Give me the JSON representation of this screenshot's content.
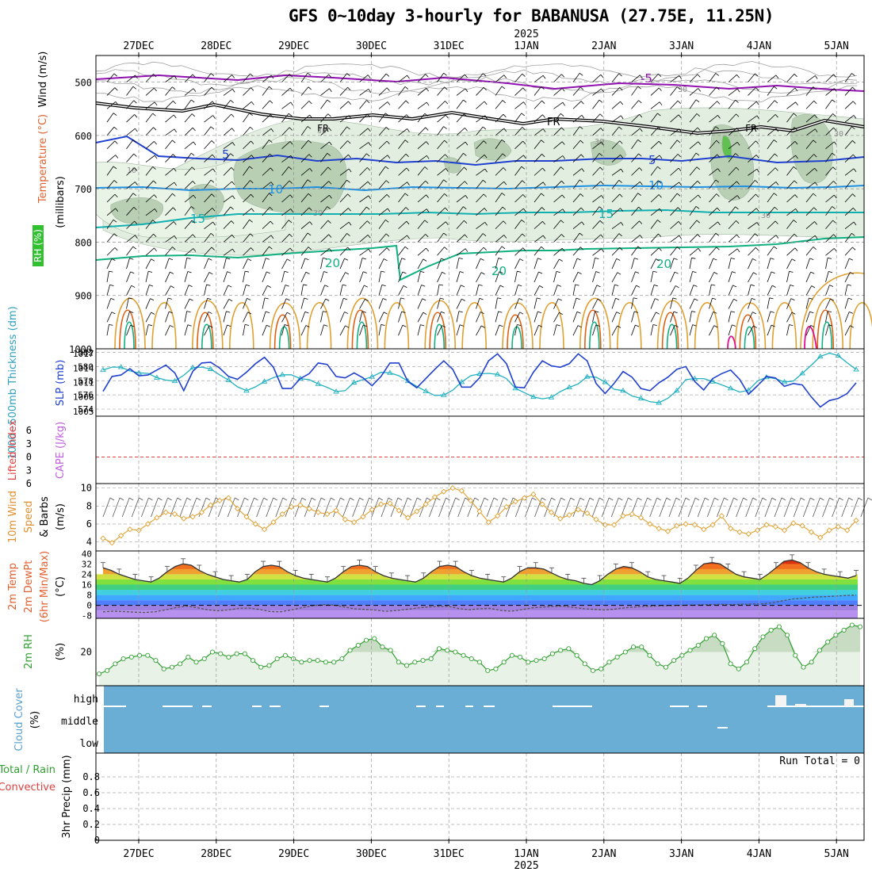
{
  "title": "GFS 0~10day 3-hourly for BABANUSA (27.75E, 11.25N)",
  "year_label": "2025",
  "chart_data": [
    {
      "type": "line",
      "panel": "upper-air",
      "ylabels_left": [
        "Wind (m/s)",
        "Temperature (°C)",
        "(millibars)",
        "RH (%)"
      ],
      "yticks": [
        500,
        600,
        700,
        800,
        900,
        1000
      ],
      "ylim": [
        1000,
        450
      ],
      "x": [
        "27DEC",
        "28DEC",
        "29DEC",
        "30DEC",
        "31DEC",
        "1JAN",
        "2JAN",
        "3JAN",
        "4JAN",
        "5JAN"
      ],
      "series": [
        {
          "name": "-5",
          "color": "#9010b0",
          "level": 500
        },
        {
          "name": "FR",
          "color": "#000000",
          "level": 565
        },
        {
          "name": "5",
          "color": "#2040d0",
          "level": 640
        },
        {
          "name": "10",
          "color": "#2090e0",
          "level": 700
        },
        {
          "name": "15",
          "color": "#10b0b0",
          "level": 745
        },
        {
          "name": "20",
          "color": "#10b080",
          "level": 820
        }
      ],
      "rh_labels": [
        "10",
        "30",
        "30",
        "30",
        "30",
        "30",
        "30"
      ]
    },
    {
      "type": "line",
      "panel": "thickness-slp",
      "ylabel_left": "1000~500mb Thickness (dm)",
      "ylabel_right": "SLP (mb)",
      "yticks_left": [
        574,
        576,
        578,
        580,
        582
      ],
      "yticks_right": [
        1005,
        1008,
        1011,
        1014,
        1017
      ],
      "series": [
        {
          "name": "Thickness",
          "color": "#2040d0",
          "values": [
            576.5,
            578.6,
            578.8,
            579.7,
            578.7,
            578.8,
            579.5,
            580.2,
            579.1,
            576.6,
            579.3,
            580.5,
            580.6,
            579.8,
            578.6,
            578.2,
            579.2,
            580.4,
            581.3,
            579.9,
            576.9,
            576.9,
            578.3,
            579.0,
            580.5,
            580.3,
            578.6,
            578.4,
            579.1,
            578.4,
            577.3,
            578.6,
            580.5,
            580.5,
            577.9,
            577.0,
            578.3,
            579.6,
            580.8,
            579.6,
            577.1,
            577.1,
            578.4,
            580.8,
            581.8,
            580.4,
            577.1,
            577.0,
            579.2,
            580.8,
            580.1,
            579.9,
            580.4,
            581.8,
            580.8,
            577.6,
            576.2,
            577.6,
            579.3,
            578.5,
            576.9,
            576.6,
            577.7,
            578.5,
            579.6,
            580.0,
            577.9,
            576.7,
            578.3,
            579.0,
            579.5,
            578.2,
            576.1,
            577.3,
            578.6,
            578.4,
            577.2,
            577.6,
            577.4,
            575.7,
            574.3,
            575.2,
            575.5,
            576.2,
            577.7
          ]
        },
        {
          "name": "SLP",
          "color": "#20b0c0",
          "values": [
            1013.6,
            1014.2,
            1014.2,
            1013.4,
            1013.0,
            1012.9,
            1012.0,
            1011.5,
            1011.3,
            1012.5,
            1014.1,
            1014.2,
            1013.8,
            1012.6,
            1011.5,
            1010.1,
            1009.3,
            1010.1,
            1011.2,
            1012.0,
            1012.6,
            1012.6,
            1011.8,
            1011.6,
            1010.7,
            1010.0,
            1009.1,
            1009.3,
            1011.0,
            1011.6,
            1012.2,
            1013.1,
            1013.0,
            1012.4,
            1011.3,
            1010.2,
            1009.2,
            1008.3,
            1008.4,
            1009.4,
            1011.1,
            1012.4,
            1012.8,
            1012.9,
            1012.7,
            1011.8,
            1009.8,
            1008.9,
            1008.0,
            1007.6,
            1007.9,
            1009.1,
            1010.0,
            1010.7,
            1012.2,
            1012.1,
            1011.1,
            1009.6,
            1009.3,
            1008.2,
            1007.7,
            1007.0,
            1006.8,
            1007.7,
            1009.3,
            1011.6,
            1011.8,
            1011.8,
            1011.2,
            1010.5,
            1009.8,
            1009.0,
            1009.4,
            1011.3,
            1012.1,
            1011.8,
            1011.1,
            1011.3,
            1012.9,
            1014.6,
            1016.4,
            1017.1,
            1016.6,
            1015.1,
            1013.7
          ]
        }
      ]
    },
    {
      "type": "line",
      "panel": "stability",
      "ylabel_left": "Lifted Index",
      "ylabel_right": "CAPE (J/kg)",
      "yticks": [
        -6,
        -3,
        0,
        3,
        6
      ],
      "yticklabels": [
        "6",
        "3",
        "0",
        "3",
        "6"
      ],
      "series": [
        {
          "name": "Lifted Index",
          "color": "#e04040",
          "values": []
        }
      ]
    },
    {
      "type": "line",
      "panel": "wind",
      "ylabel": "10m Wind Speed & Barbs (m/s)",
      "yticks": [
        4,
        6,
        8,
        10
      ],
      "ylim": [
        3,
        10.5
      ],
      "series": [
        {
          "name": "Speed",
          "color": "#e0a030",
          "values": [
            4.4,
            3.9,
            4.7,
            5.4,
            5.3,
            6.0,
            6.7,
            7.3,
            7.1,
            6.6,
            6.8,
            7.3,
            8.1,
            8.6,
            8.9,
            7.7,
            6.8,
            6.0,
            5.4,
            6.2,
            7.1,
            7.9,
            8.1,
            7.7,
            7.3,
            7.1,
            7.5,
            6.5,
            6.2,
            6.8,
            7.6,
            8.2,
            8.3,
            7.5,
            6.7,
            7.4,
            8.2,
            9.0,
            9.6,
            10.0,
            9.7,
            8.6,
            7.4,
            6.2,
            6.9,
            7.9,
            8.5,
            8.9,
            9.3,
            8.2,
            7.3,
            6.6,
            7.0,
            7.6,
            7.2,
            6.5,
            5.9,
            5.9,
            6.9,
            7.1,
            6.7,
            6.0,
            5.5,
            5.2,
            5.8,
            6.0,
            5.9,
            5.4,
            5.9,
            6.9,
            5.5,
            5.1,
            4.9,
            5.3,
            5.9,
            5.7,
            5.3,
            6.1,
            5.8,
            5.1,
            4.5,
            5.3,
            5.7,
            5.3,
            6.4
          ]
        }
      ]
    },
    {
      "type": "area",
      "panel": "temperature",
      "ylabel": "2m Temp 2m DewPt (6hr Min/Max) (°C)",
      "yticks": [
        -8,
        0,
        8,
        16,
        24,
        32,
        40
      ],
      "yticklabels": [
        "-8",
        "0",
        "8",
        "16",
        "24",
        "32",
        "40"
      ],
      "series": [
        {
          "name": "2m Temp",
          "color": "#000000",
          "values": [
            29,
            27,
            24,
            22,
            20,
            19,
            18,
            21,
            26,
            30,
            32,
            31,
            27,
            24,
            22,
            20,
            19,
            18,
            20,
            26,
            30,
            31,
            30,
            26,
            23,
            21,
            20,
            19,
            18,
            21,
            26,
            30,
            31,
            30,
            26,
            23,
            21,
            20,
            19,
            18,
            21,
            26,
            30,
            31,
            30,
            26,
            23,
            21,
            20,
            19,
            18,
            21,
            26,
            29,
            29,
            28,
            25,
            22,
            20,
            19,
            17,
            16,
            19,
            24,
            28,
            30,
            29,
            26,
            22,
            20,
            19,
            18,
            17,
            21,
            27,
            32,
            33,
            32,
            28,
            24,
            22,
            21,
            20,
            24,
            29,
            34,
            35,
            33,
            29,
            26,
            24,
            23,
            22,
            21,
            23
          ]
        },
        {
          "name": "2m DewPt",
          "color": "#7070ff",
          "values": [
            -5,
            -4.5,
            -4.8,
            -5.2,
            -5.5,
            -4.9,
            -3.4,
            -1.6,
            -0.5,
            -1.8,
            -3.4,
            -4.2,
            -3.5,
            -2.3,
            -2.1,
            -3.2,
            -4.8,
            -4.9,
            -3.5,
            -1.8,
            -0.4,
            0.6,
            0.3,
            -1.1,
            -2.6,
            -3.1,
            -3.6,
            -4.6,
            -4.0,
            -3.1,
            -2.1,
            -1.3,
            -0.8,
            -0.7,
            -2.4,
            -3.4,
            -2.6,
            -2.3,
            -3.9,
            -4.5,
            -3.4,
            -1.9,
            -1.4,
            -0.9,
            -0.6,
            -1.6,
            -2.6,
            -3.1,
            -3.6,
            -2.8,
            -1.8,
            -1.2,
            -0.8,
            -0.4,
            -0.2,
            0,
            0.2,
            0.4,
            0.6,
            0.8,
            0.6,
            0.8,
            1.0,
            1.2,
            2.0,
            3.6,
            5.0,
            5.6,
            6.4,
            6.7,
            7.1,
            7.6,
            7.9
          ]
        }
      ]
    },
    {
      "type": "area",
      "panel": "rh",
      "ylabel": "2m RH (%)",
      "yticks": [
        20
      ],
      "series": [
        {
          "name": "2m RH",
          "color": "#30a030",
          "values": [
            7,
            9,
            13,
            16,
            17,
            18,
            18,
            15,
            10,
            11,
            13,
            17,
            14,
            16,
            20,
            19,
            17,
            19,
            19,
            15,
            11,
            12,
            16,
            18,
            16,
            14,
            15,
            15,
            14,
            14,
            16,
            21,
            24,
            27,
            28,
            23,
            21,
            14,
            12,
            14,
            15,
            16,
            22,
            21,
            20,
            18,
            16,
            14,
            9,
            10,
            14,
            18,
            17,
            14,
            15,
            16,
            19,
            21,
            22,
            18,
            13,
            9,
            10,
            14,
            17,
            20,
            23,
            23,
            18,
            13,
            11,
            15,
            18,
            21,
            24,
            28,
            30,
            25,
            13,
            10,
            14,
            22,
            29,
            33,
            35,
            30,
            18,
            11,
            14,
            21,
            26,
            30,
            33,
            36,
            35
          ]
        }
      ]
    },
    {
      "type": "bar",
      "panel": "cloud",
      "ylabel": "Cloud Cover (%)",
      "yticklabels": [
        "high",
        "middle",
        "low"
      ]
    },
    {
      "type": "bar",
      "panel": "precip",
      "ylabel": "3hr Precip (mm)",
      "legend": [
        "Total / Rain",
        "Convective"
      ],
      "yticks": [
        0,
        0.2,
        0.4,
        0.6,
        0.8
      ],
      "yticklabels": [
        "0",
        "0.2",
        "0.4",
        "0.6",
        "0.8"
      ],
      "annotation": "Run Total = 0",
      "values": []
    }
  ],
  "colors": {
    "temp_scale": [
      "#7f3fd0",
      "#9f7fe0",
      "#4080ff",
      "#40c0ff",
      "#40d080",
      "#80e040",
      "#e0e040",
      "#f0c030",
      "#f08020",
      "#e04010"
    ],
    "cloud_bg": "#6aaed6"
  }
}
